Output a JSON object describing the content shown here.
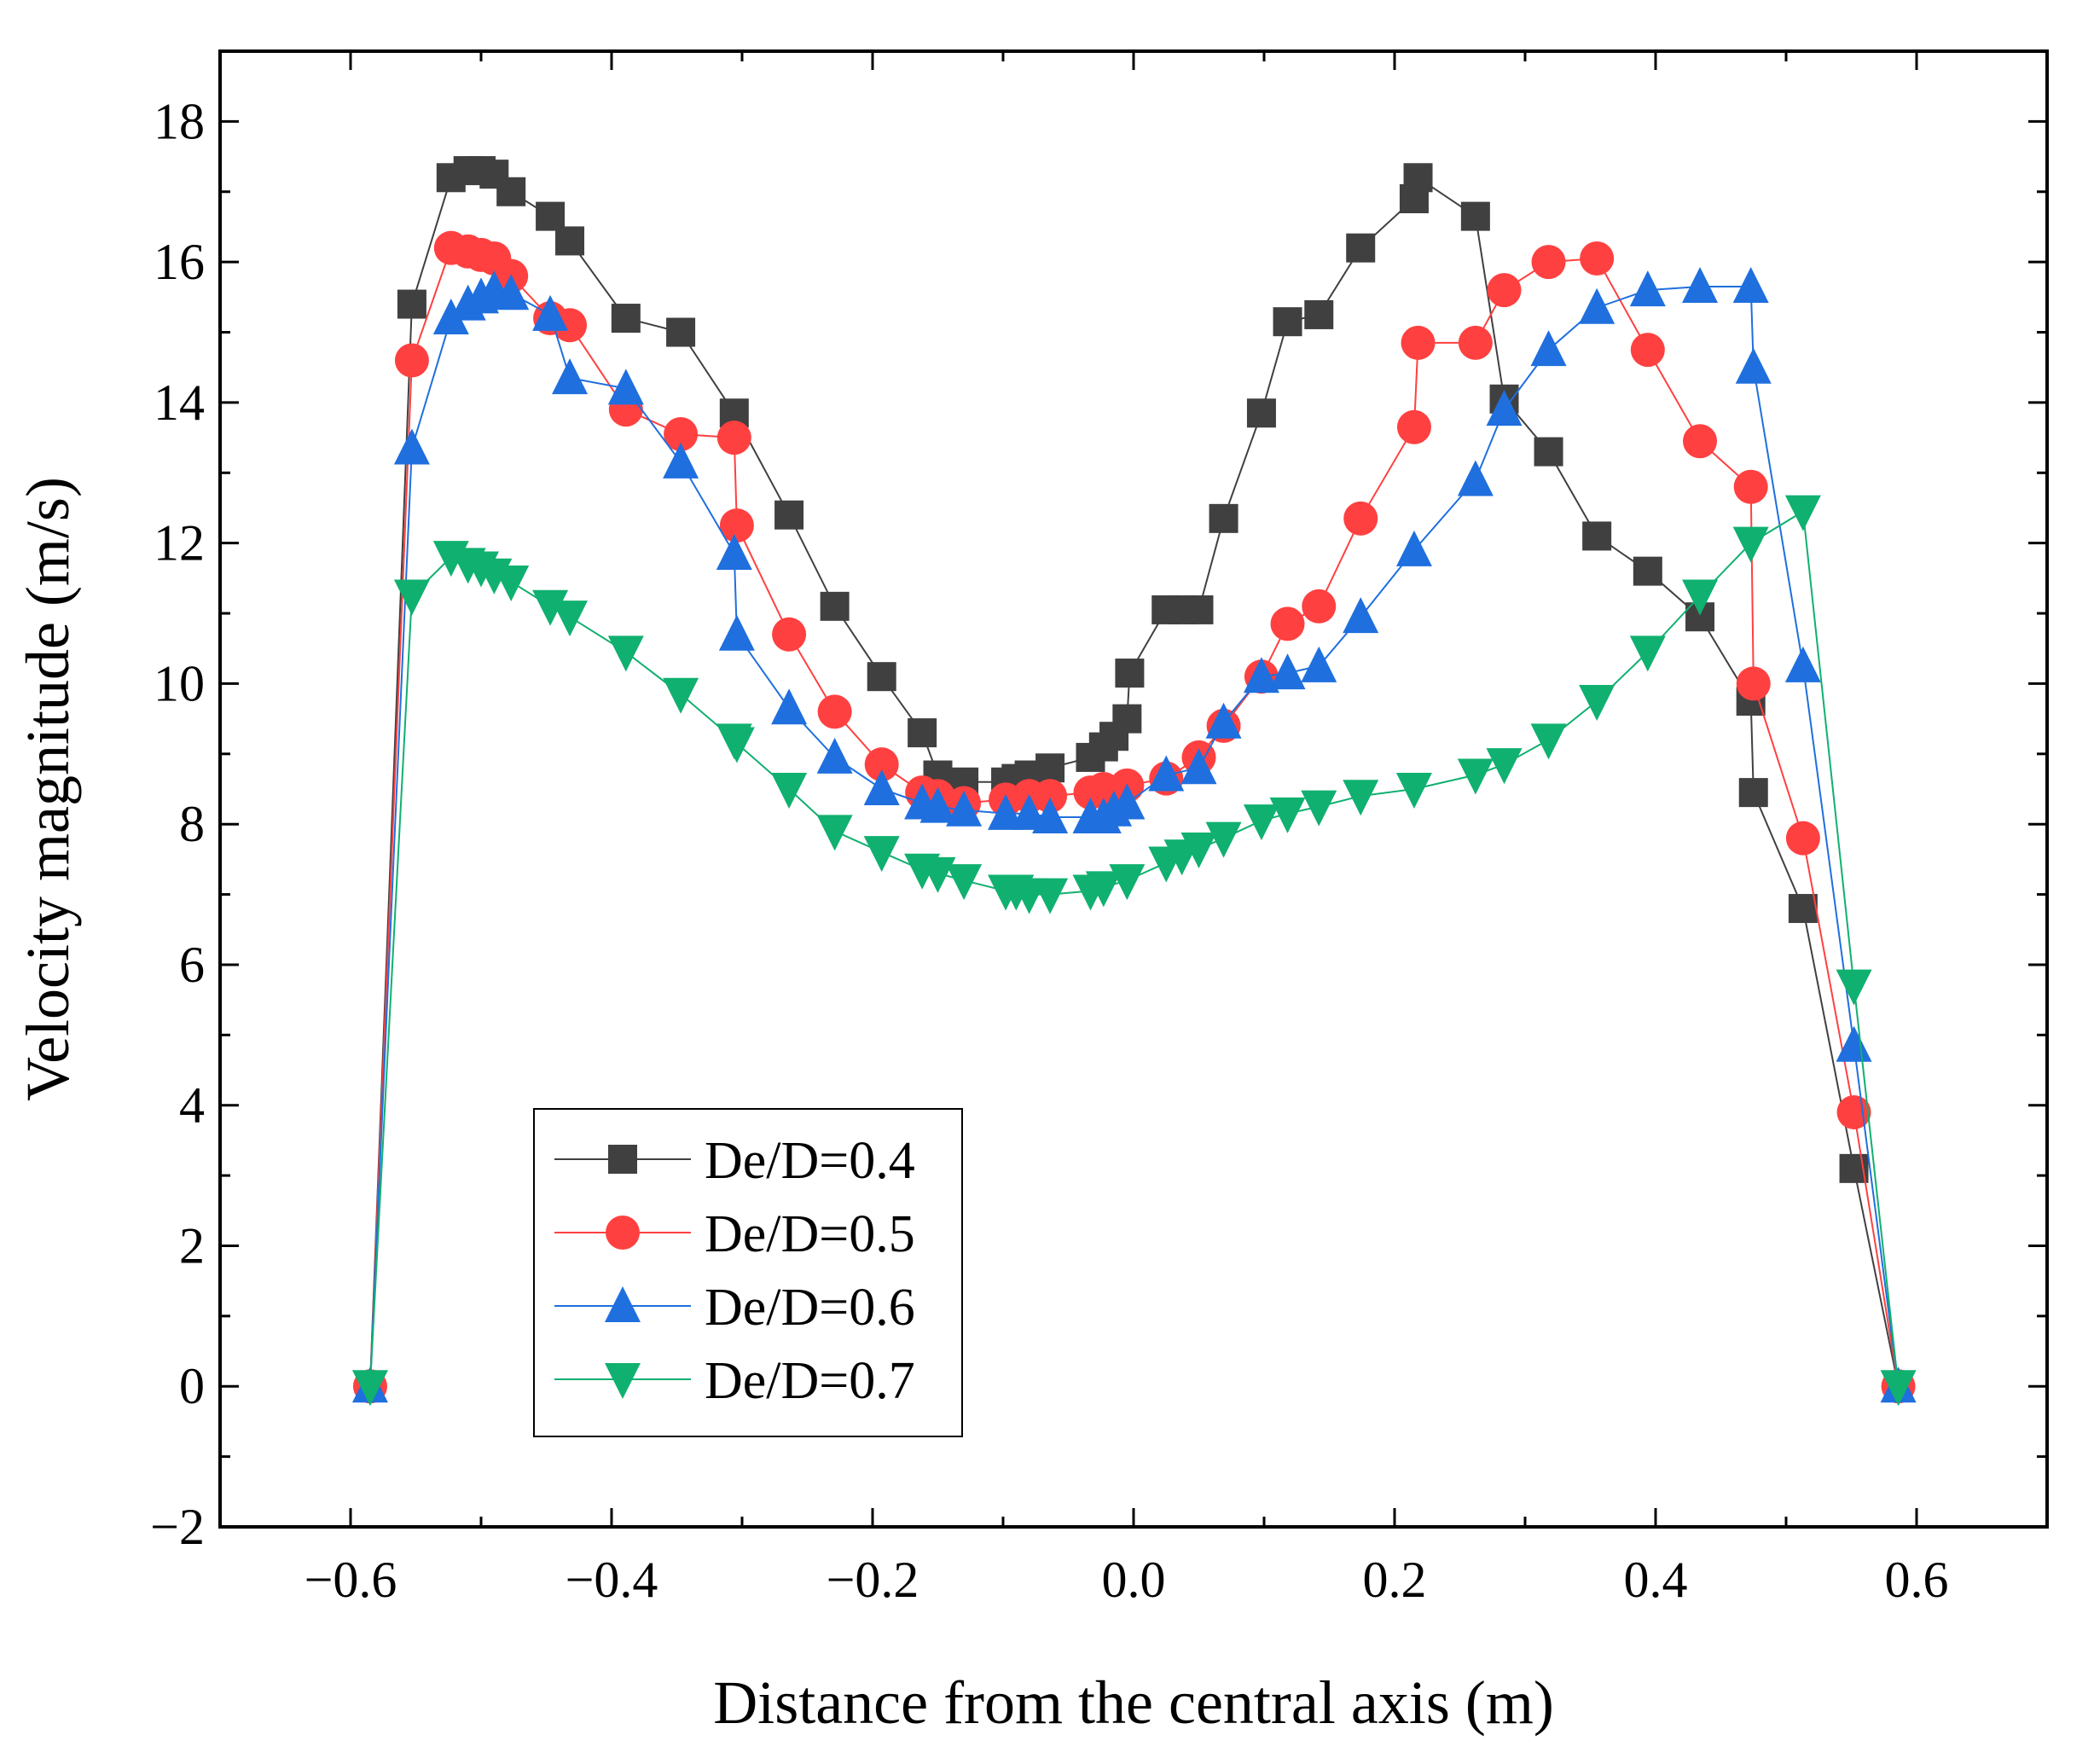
{
  "chart_data": {
    "type": "line",
    "title": "",
    "xlabel": "Distance from the central axis (m)",
    "ylabel": "Velocity magnitude (m/s)",
    "xlim": [
      -0.7,
      0.7
    ],
    "ylim": [
      -2,
      19
    ],
    "xticks": [
      -0.6,
      -0.4,
      -0.2,
      0.0,
      0.2,
      0.4,
      0.6
    ],
    "xtick_labels": [
      "−0.6",
      "−0.4",
      "−0.2",
      "0.0",
      "0.2",
      "0.4",
      "0.6"
    ],
    "yticks": [
      -2,
      0,
      2,
      4,
      6,
      8,
      10,
      12,
      14,
      16,
      18
    ],
    "ytick_labels": [
      "−2",
      "0",
      "2",
      "4",
      "6",
      "8",
      "10",
      "12",
      "14",
      "16",
      "18"
    ],
    "grid": false,
    "legend_position": "bottom-left",
    "series": [
      {
        "name": "De/D=0.4",
        "color": "#404040",
        "marker": "square",
        "x": [
          -0.585,
          -0.553,
          -0.523,
          -0.51,
          -0.5,
          -0.49,
          -0.477,
          -0.447,
          -0.432,
          -0.389,
          -0.347,
          -0.306,
          -0.264,
          -0.229,
          -0.193,
          -0.162,
          -0.15,
          -0.13,
          -0.098,
          -0.09,
          -0.08,
          -0.064,
          -0.033,
          -0.023,
          -0.015,
          -0.005,
          -0.003,
          0.025,
          0.037,
          0.05,
          0.069,
          0.098,
          0.118,
          0.142,
          0.174,
          0.215,
          0.218,
          0.262,
          0.284,
          0.318,
          0.355,
          0.394,
          0.434,
          0.473,
          0.475,
          0.513,
          0.552,
          0.586
        ],
        "y": [
          0,
          15.4,
          17.2,
          17.3,
          17.3,
          17.25,
          17.0,
          16.65,
          16.3,
          15.2,
          15.0,
          13.85,
          12.4,
          11.1,
          10.1,
          9.3,
          8.7,
          8.6,
          8.6,
          8.65,
          8.7,
          8.8,
          8.95,
          9.1,
          9.25,
          9.5,
          10.15,
          11.05,
          11.05,
          11.05,
          12.35,
          13.85,
          15.15,
          15.25,
          16.2,
          16.9,
          17.2,
          16.65,
          14.05,
          13.3,
          12.1,
          11.6,
          10.95,
          9.75,
          8.45,
          6.8,
          3.1,
          0
        ]
      },
      {
        "name": "De/D=0.5",
        "color": "#ff4040",
        "marker": "circle",
        "x": [
          -0.585,
          -0.553,
          -0.523,
          -0.51,
          -0.5,
          -0.49,
          -0.477,
          -0.447,
          -0.432,
          -0.389,
          -0.347,
          -0.306,
          -0.304,
          -0.264,
          -0.229,
          -0.193,
          -0.162,
          -0.15,
          -0.13,
          -0.098,
          -0.08,
          -0.064,
          -0.033,
          -0.023,
          -0.005,
          0.025,
          0.05,
          0.069,
          0.098,
          0.118,
          0.142,
          0.174,
          0.215,
          0.218,
          0.262,
          0.284,
          0.318,
          0.355,
          0.394,
          0.434,
          0.473,
          0.475,
          0.513,
          0.552,
          0.586
        ],
        "y": [
          0,
          14.6,
          16.2,
          16.15,
          16.1,
          16.05,
          15.8,
          15.2,
          15.1,
          13.9,
          13.55,
          13.5,
          12.25,
          10.7,
          9.6,
          8.85,
          8.45,
          8.4,
          8.3,
          8.35,
          8.4,
          8.4,
          8.45,
          8.5,
          8.55,
          8.65,
          8.95,
          9.4,
          10.1,
          10.85,
          11.1,
          12.35,
          13.65,
          14.85,
          14.85,
          15.6,
          16.0,
          16.05,
          14.75,
          13.45,
          12.8,
          10.0,
          7.8,
          3.9,
          0
        ]
      },
      {
        "name": "De/D=0.6",
        "color": "#1f6fde",
        "marker": "triangle-up",
        "x": [
          -0.585,
          -0.553,
          -0.523,
          -0.51,
          -0.5,
          -0.49,
          -0.477,
          -0.447,
          -0.432,
          -0.389,
          -0.347,
          -0.306,
          -0.304,
          -0.264,
          -0.229,
          -0.193,
          -0.162,
          -0.15,
          -0.13,
          -0.098,
          -0.08,
          -0.064,
          -0.033,
          -0.023,
          -0.015,
          -0.005,
          0.025,
          0.05,
          0.069,
          0.098,
          0.118,
          0.142,
          0.174,
          0.215,
          0.262,
          0.284,
          0.318,
          0.355,
          0.394,
          0.434,
          0.473,
          0.475,
          0.513,
          0.552,
          0.586
        ],
        "y": [
          0,
          13.35,
          15.2,
          15.4,
          15.5,
          15.6,
          15.55,
          15.25,
          14.35,
          14.2,
          13.15,
          11.85,
          10.7,
          9.65,
          8.95,
          8.5,
          8.3,
          8.25,
          8.2,
          8.15,
          8.15,
          8.1,
          8.1,
          8.1,
          8.2,
          8.3,
          8.7,
          8.8,
          9.45,
          10.1,
          10.15,
          10.25,
          10.95,
          11.9,
          12.9,
          13.9,
          14.75,
          15.35,
          15.6,
          15.65,
          15.65,
          14.5,
          10.25,
          4.85,
          0
        ]
      },
      {
        "name": "De/D=0.7",
        "color": "#10b070",
        "marker": "triangle-down",
        "x": [
          -0.585,
          -0.553,
          -0.523,
          -0.51,
          -0.5,
          -0.49,
          -0.477,
          -0.447,
          -0.432,
          -0.389,
          -0.347,
          -0.306,
          -0.304,
          -0.264,
          -0.229,
          -0.193,
          -0.162,
          -0.15,
          -0.13,
          -0.098,
          -0.09,
          -0.08,
          -0.064,
          -0.033,
          -0.023,
          -0.005,
          0.025,
          0.037,
          0.05,
          0.069,
          0.098,
          0.118,
          0.142,
          0.174,
          0.215,
          0.262,
          0.284,
          0.318,
          0.355,
          0.394,
          0.434,
          0.473,
          0.513,
          0.552,
          0.586
        ],
        "y": [
          0,
          11.25,
          11.8,
          11.7,
          11.65,
          11.55,
          11.45,
          11.1,
          10.95,
          10.45,
          9.85,
          9.2,
          9.15,
          8.5,
          7.9,
          7.6,
          7.35,
          7.3,
          7.2,
          7.05,
          7.05,
          7.0,
          7.0,
          7.05,
          7.1,
          7.2,
          7.45,
          7.55,
          7.65,
          7.8,
          8.05,
          8.15,
          8.25,
          8.4,
          8.5,
          8.7,
          8.85,
          9.2,
          9.75,
          10.45,
          11.25,
          12.0,
          12.45,
          5.7,
          0
        ]
      }
    ]
  }
}
